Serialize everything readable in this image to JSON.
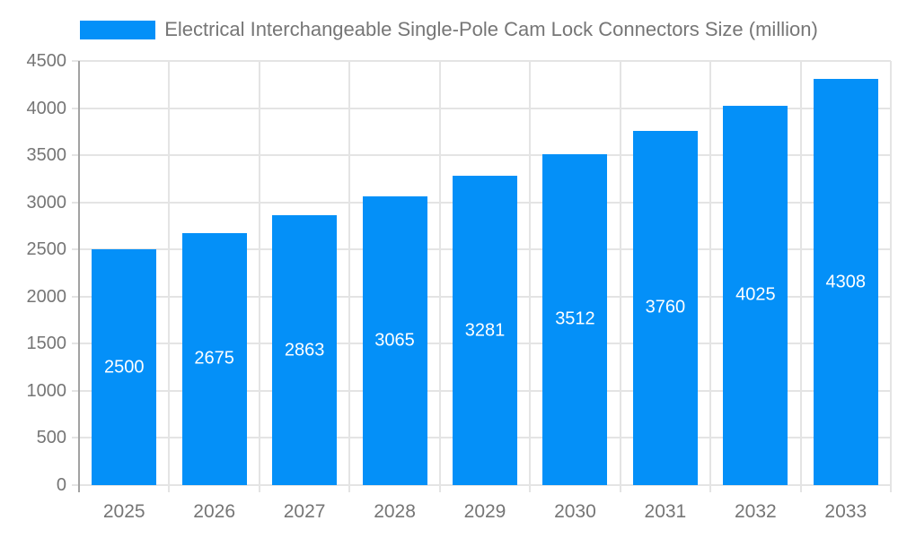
{
  "chart_data": {
    "type": "bar",
    "title": "Electrical Interchangeable Single-Pole Cam Lock Connectors Size (million)",
    "categories": [
      "2025",
      "2026",
      "2027",
      "2028",
      "2029",
      "2030",
      "2031",
      "2032",
      "2033"
    ],
    "values": [
      2500,
      2675,
      2863,
      3065,
      3281,
      3512,
      3760,
      4025,
      4308
    ],
    "series_name": "Electrical Interchangeable Single-Pole Cam Lock Connectors Size (million)",
    "xlabel": "",
    "ylabel": "",
    "ylim": [
      0,
      4500
    ],
    "yticks": [
      0,
      500,
      1000,
      1500,
      2000,
      2500,
      3000,
      3500,
      4000,
      4500
    ],
    "grid": true,
    "legend_position": "top-center",
    "value_labels_inside_bars": true,
    "colors": {
      "bar": "#0490f8",
      "bar_value_text": "#ffffff",
      "axis_text": "#757575",
      "title_text": "#767676",
      "grid_line": "#e4e4e4",
      "axis_line": "#a2a2a2",
      "background": "#ffffff"
    }
  }
}
